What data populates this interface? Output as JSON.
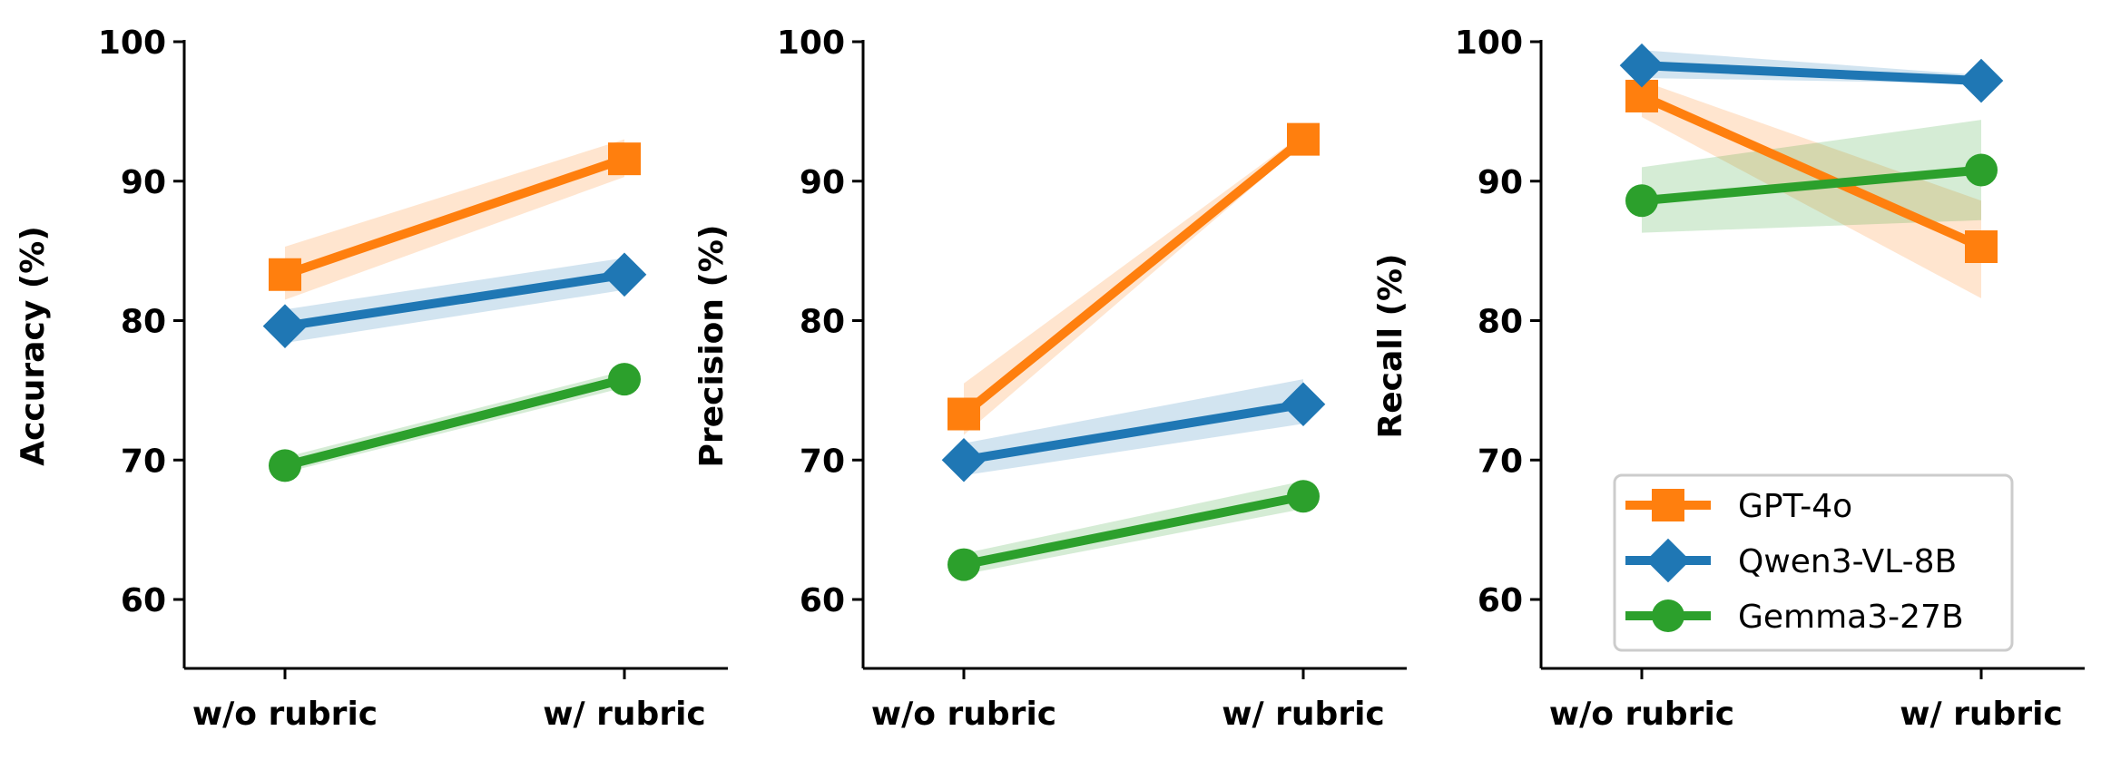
{
  "chart_data": [
    {
      "type": "line",
      "title": "",
      "xlabel": "",
      "ylabel": "Accuracy (%)",
      "categories": [
        "w/o rubric",
        "w/ rubric"
      ],
      "ylim": [
        55,
        100
      ],
      "yticks": [
        60,
        70,
        80,
        90,
        100
      ],
      "grid": false,
      "series": [
        {
          "name": "GPT-4o",
          "values": [
            83.3,
            91.6
          ],
          "band_low": [
            81.5,
            90.3
          ],
          "band_high": [
            85.3,
            93.0
          ]
        },
        {
          "name": "Qwen3-VL-8B",
          "values": [
            79.6,
            83.3
          ],
          "band_low": [
            78.4,
            82.2
          ],
          "band_high": [
            80.8,
            84.5
          ]
        },
        {
          "name": "Gemma3-27B",
          "values": [
            69.6,
            75.8
          ],
          "band_low": [
            69.1,
            75.2
          ],
          "band_high": [
            70.2,
            76.4
          ]
        }
      ]
    },
    {
      "type": "line",
      "title": "",
      "xlabel": "",
      "ylabel": "Precision (%)",
      "categories": [
        "w/o rubric",
        "w/ rubric"
      ],
      "ylim": [
        55,
        100
      ],
      "yticks": [
        60,
        70,
        80,
        90,
        100
      ],
      "grid": false,
      "series": [
        {
          "name": "GPT-4o",
          "values": [
            73.3,
            93.0
          ],
          "band_low": [
            71.8,
            92.7
          ],
          "band_high": [
            75.5,
            93.4
          ]
        },
        {
          "name": "Qwen3-VL-8B",
          "values": [
            70.0,
            74.0
          ],
          "band_low": [
            68.9,
            72.6
          ],
          "band_high": [
            71.2,
            75.8
          ]
        },
        {
          "name": "Gemma3-27B",
          "values": [
            62.5,
            67.4
          ],
          "band_low": [
            61.8,
            66.5
          ],
          "band_high": [
            63.3,
            68.5
          ]
        }
      ]
    },
    {
      "type": "line",
      "title": "",
      "xlabel": "",
      "ylabel": "Recall (%)",
      "categories": [
        "w/o rubric",
        "w/ rubric"
      ],
      "ylim": [
        55,
        100
      ],
      "yticks": [
        60,
        70,
        80,
        90,
        100
      ],
      "grid": false,
      "legend_position": "lower right",
      "series": [
        {
          "name": "GPT-4o",
          "values": [
            96.1,
            85.3
          ],
          "band_low": [
            94.6,
            81.6
          ],
          "band_high": [
            97.2,
            88.6
          ]
        },
        {
          "name": "Qwen3-VL-8B",
          "values": [
            98.3,
            97.2
          ],
          "band_low": [
            97.4,
            97.0
          ],
          "band_high": [
            99.4,
            97.6
          ]
        },
        {
          "name": "Gemma3-27B",
          "values": [
            88.6,
            90.8
          ],
          "band_low": [
            86.3,
            87.2
          ],
          "band_high": [
            91.0,
            94.4
          ]
        }
      ]
    }
  ],
  "legend": {
    "items": [
      {
        "label": "GPT-4o",
        "color": "#ff7f0e",
        "marker": "square"
      },
      {
        "label": "Qwen3-VL-8B",
        "color": "#1f77b4",
        "marker": "diamond"
      },
      {
        "label": "Gemma3-27B",
        "color": "#2ca02c",
        "marker": "circle"
      }
    ]
  },
  "colors": {
    "GPT-4o": "#ff7f0e",
    "Qwen3-VL-8B": "#1f77b4",
    "Gemma3-27B": "#2ca02c"
  }
}
